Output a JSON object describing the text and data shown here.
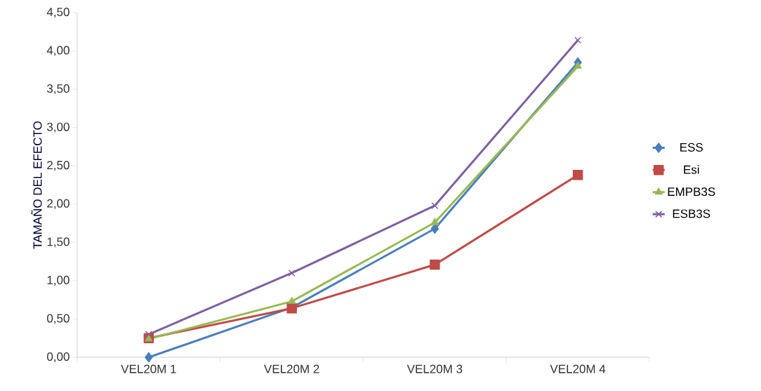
{
  "chart_data": {
    "type": "line",
    "ylabel": "TAMAÑO DEL EFECTO",
    "categories": [
      "VEL20M 1",
      "VEL20M 2",
      "VEL20M 3",
      "VEL20M 4"
    ],
    "series": [
      {
        "name": "ESS",
        "color": "#4a7ebb",
        "marker": "diamond",
        "values": [
          0.0,
          0.65,
          1.68,
          3.85
        ]
      },
      {
        "name": "Esi",
        "color": "#be4b48",
        "marker": "square",
        "values": [
          0.25,
          0.64,
          1.21,
          2.38
        ]
      },
      {
        "name": "EMPB3S",
        "color": "#98b954",
        "marker": "triangle",
        "values": [
          0.24,
          0.73,
          1.76,
          3.8
        ]
      },
      {
        "name": "ESB3S",
        "color": "#7d60a0",
        "marker": "cross",
        "values": [
          0.3,
          1.1,
          1.98,
          4.14
        ]
      }
    ],
    "ylim": [
      0,
      4.5
    ],
    "yticks": [
      {
        "value": 0,
        "label": "0,00"
      },
      {
        "value": 0.5,
        "label": "0,50"
      },
      {
        "value": 1,
        "label": "1,00"
      },
      {
        "value": 1.5,
        "label": "1,50"
      },
      {
        "value": 2,
        "label": "2,00"
      },
      {
        "value": 2.5,
        "label": "2,50"
      },
      {
        "value": 3,
        "label": "3,00"
      },
      {
        "value": 3.5,
        "label": "3,50"
      },
      {
        "value": 4,
        "label": "4,00"
      },
      {
        "value": 4.5,
        "label": "4,50"
      }
    ],
    "grid": false,
    "legend": "right",
    "line_style": "solid"
  }
}
